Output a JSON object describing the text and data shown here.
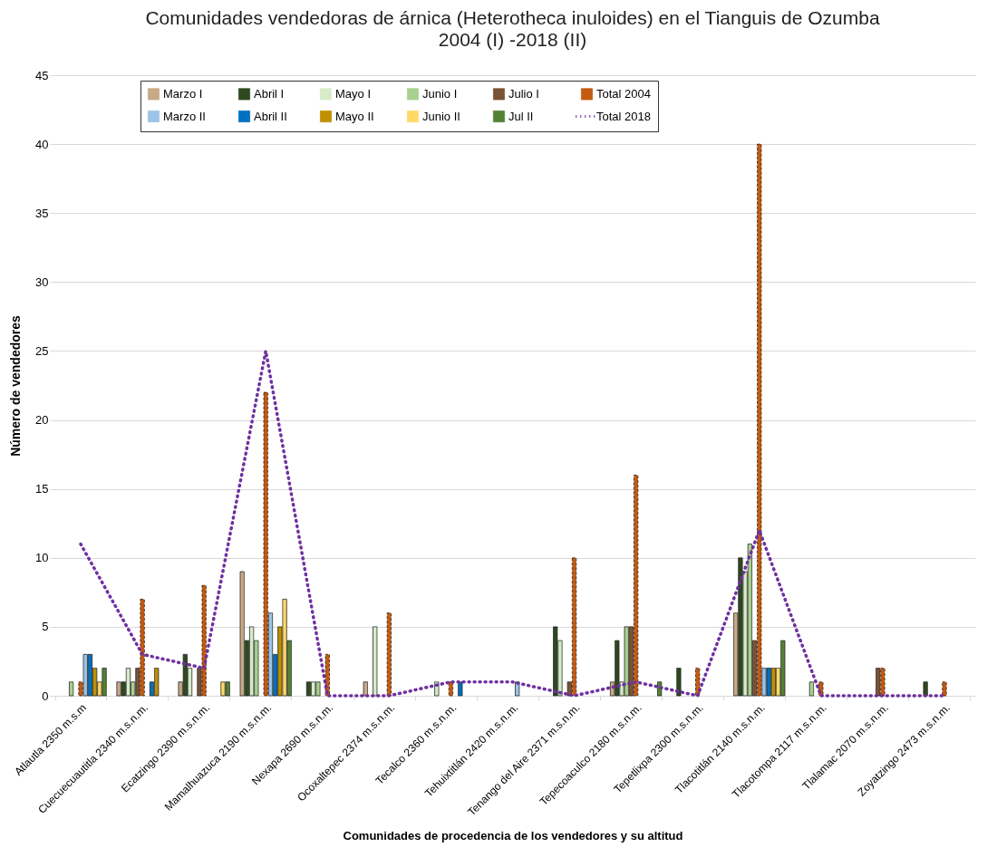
{
  "chart_data": {
    "type": "bar",
    "title": "Comunidades vendedoras de árnica (Heterotheca inuloides) en el Tianguis de Ozumba",
    "subtitle": "2004 (I) -2018 (II)",
    "xlabel": "Comunidades de procedencia de los vendedores y su altitud",
    "ylabel": "Número de vendedores",
    "categories": [
      "Atlautla 2350 m.s.m",
      "Cuecuecuautitla 2340 m.s.n.m.",
      "Ecatzingo 2390 m.s.n.m.",
      "Mamalhuazuca 2190 m.s.n.m.",
      "Nexapa 2690 m.s.n.m.",
      "Ocoxaltepec 2374 m.s.n.m.",
      "Tecalco 2360 m.s.n.m.",
      "Tehuixtitlán 2420 m.s.n.m.",
      "Tenango del Aire 2371 m.s.n.m.",
      "Tepecoaculco 2180 m.s.n.m.",
      "Tepetlixpa 2300 m.s.n.m.",
      "Tlacotitlán 2140 m.s.n.m.",
      "Tlacotompa 2117 m.s.n.m.",
      "Tlalamac 2070 m.s.n.m.",
      "Zoyatzingo 2473 m.s.n.m."
    ],
    "series": [
      {
        "name": "Marzo I",
        "color": "#c9a987",
        "values": [
          0,
          1,
          1,
          9,
          0,
          1,
          0,
          0,
          0,
          1,
          0,
          6,
          0,
          0,
          0
        ]
      },
      {
        "name": "Abril I",
        "color": "#2d4a1e",
        "values": [
          0,
          1,
          3,
          4,
          1,
          0,
          0,
          0,
          5,
          4,
          2,
          10,
          0,
          0,
          1
        ]
      },
      {
        "name": "Mayo I",
        "color": "#d6ecc8",
        "values": [
          0,
          2,
          2,
          5,
          1,
          5,
          1,
          0,
          4,
          1,
          0,
          9,
          0,
          0,
          0
        ]
      },
      {
        "name": "Junio I",
        "color": "#a9d18e",
        "values": [
          1,
          1,
          0,
          4,
          1,
          0,
          0,
          0,
          0,
          5,
          0,
          11,
          1,
          0,
          0
        ]
      },
      {
        "name": "Julio I",
        "color": "#7a5234",
        "values": [
          0,
          2,
          2,
          0,
          0,
          0,
          0,
          0,
          1,
          5,
          0,
          4,
          0,
          2,
          0
        ]
      },
      {
        "name": "Total 2004",
        "color": "#c55a11",
        "line_style": "dashed",
        "values": [
          1,
          7,
          8,
          22,
          3,
          6,
          1,
          0,
          10,
          16,
          2,
          40,
          1,
          2,
          1
        ]
      },
      {
        "name": "Marzo II",
        "color": "#9dc3e6",
        "values": [
          3,
          0,
          0,
          6,
          0,
          0,
          0,
          1,
          0,
          0,
          0,
          2,
          0,
          0,
          0
        ]
      },
      {
        "name": "Abril II",
        "color": "#0070c0",
        "values": [
          3,
          1,
          0,
          3,
          0,
          0,
          1,
          0,
          0,
          0,
          0,
          2,
          0,
          0,
          0
        ]
      },
      {
        "name": "Mayo II",
        "color": "#bf9000",
        "values": [
          2,
          2,
          0,
          5,
          0,
          0,
          0,
          0,
          0,
          0,
          0,
          2,
          0,
          0,
          0
        ]
      },
      {
        "name": "Junio II",
        "color": "#ffd966",
        "values": [
          1,
          0,
          1,
          7,
          0,
          0,
          0,
          0,
          0,
          0,
          0,
          2,
          0,
          0,
          0
        ]
      },
      {
        "name": "Jul II",
        "color": "#548235",
        "values": [
          2,
          0,
          1,
          4,
          0,
          0,
          0,
          0,
          0,
          1,
          0,
          4,
          0,
          0,
          0
        ]
      },
      {
        "name": "Total 2018",
        "color": "#7030a0",
        "type": "line",
        "line_style": "dotted",
        "values": [
          11,
          3,
          2,
          25,
          0,
          0,
          1,
          1,
          0,
          1,
          0,
          12,
          0,
          0,
          0
        ]
      }
    ],
    "ylim": [
      0,
      45
    ],
    "yticks": [
      0,
      5,
      10,
      15,
      20,
      25,
      30,
      35,
      40,
      45
    ],
    "grid": "y",
    "legend": "top",
    "marker": "none"
  }
}
